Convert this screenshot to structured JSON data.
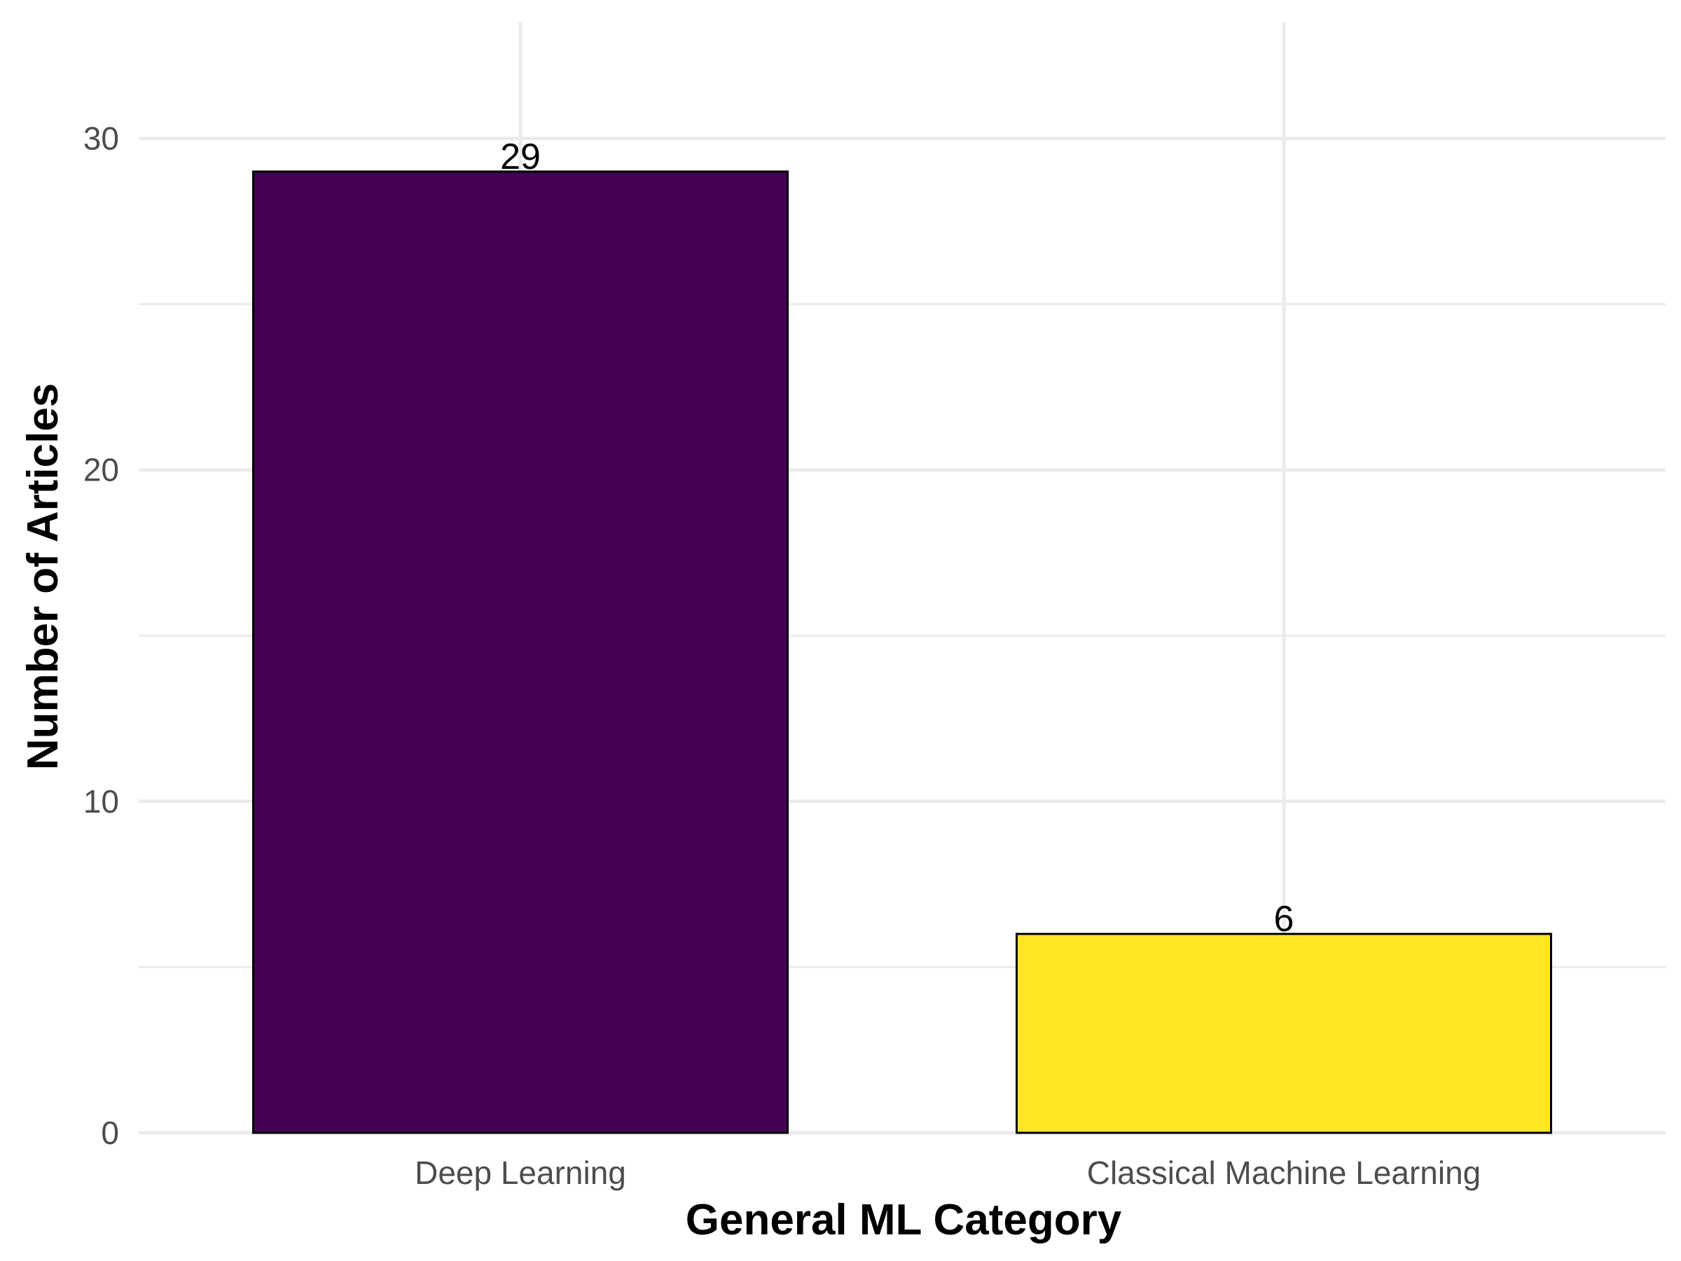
{
  "chart_data": {
    "type": "bar",
    "categories": [
      "Deep Learning",
      "Classical Machine Learning"
    ],
    "values": [
      29,
      6
    ],
    "data_labels": [
      "29",
      "6"
    ],
    "colors": [
      "#440154",
      "#fde725"
    ],
    "title": "",
    "xlabel": "General ML Category",
    "ylabel": "Number of Articles",
    "ylim": [
      0,
      33.5
    ],
    "yticks": [
      0,
      10,
      20,
      30
    ],
    "ytick_labels": [
      "0",
      "10",
      "20",
      "30"
    ],
    "yticks_minor": [
      5,
      15,
      25
    ],
    "grid": true,
    "legend": "none"
  }
}
